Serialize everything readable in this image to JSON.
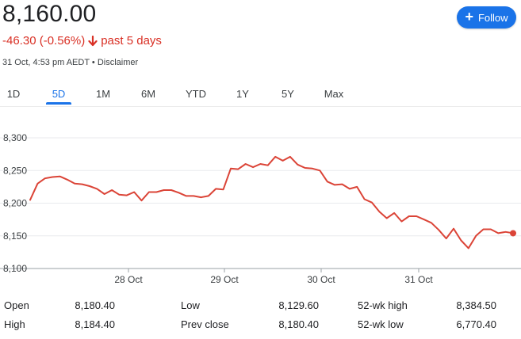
{
  "quote": {
    "price": "8,160.00",
    "change": "-46.30 (-0.56%)",
    "period": "past 5 days",
    "meta": "31 Oct, 4:53 pm AEDT • Disclaimer",
    "follow_label": "Follow",
    "down_color": "#d93025",
    "accent": "#1a73e8"
  },
  "tabs": [
    {
      "label": "1D",
      "active": false
    },
    {
      "label": "5D",
      "active": true
    },
    {
      "label": "1M",
      "active": false
    },
    {
      "label": "6M",
      "active": false
    },
    {
      "label": "YTD",
      "active": false
    },
    {
      "label": "1Y",
      "active": false
    },
    {
      "label": "5Y",
      "active": false
    },
    {
      "label": "Max",
      "active": false
    }
  ],
  "chart_data": {
    "type": "line",
    "ylim": [
      8100,
      8300
    ],
    "y_ticks": [
      "8,300",
      "8,250",
      "8,200",
      "8,150",
      "8,100"
    ],
    "x_ticks": [
      "28 Oct",
      "29 Oct",
      "30 Oct",
      "31 Oct"
    ],
    "line_color": "#db4437",
    "series": [
      {
        "values": [
          8205,
          8230,
          8238,
          8240,
          8241,
          8236,
          8230,
          8229,
          8226,
          8222,
          8214,
          8220,
          8213,
          8212,
          8217,
          8204,
          8217,
          8217,
          8220,
          8220,
          8216,
          8211,
          8211,
          8209,
          8211,
          8222,
          8221,
          8253,
          8252,
          8260,
          8255,
          8260,
          8258,
          8271,
          8265,
          8271,
          8259,
          8254,
          8253,
          8250,
          8233,
          8228,
          8229,
          8222,
          8225,
          8206,
          8201,
          8187,
          8177,
          8185,
          8172,
          8180,
          8180,
          8175,
          8170,
          8159,
          8146,
          8161,
          8143,
          8131,
          8150,
          8160,
          8160,
          8154,
          8156,
          8154
        ]
      }
    ]
  },
  "stats": [
    {
      "label": "Open",
      "value": "8,180.40"
    },
    {
      "label": "High",
      "value": "8,184.40"
    },
    {
      "label": "Low",
      "value": "8,129.60"
    },
    {
      "label": "Prev close",
      "value": "8,180.40"
    },
    {
      "label": "52-wk high",
      "value": "8,384.50"
    },
    {
      "label": "52-wk low",
      "value": "6,770.40"
    }
  ]
}
